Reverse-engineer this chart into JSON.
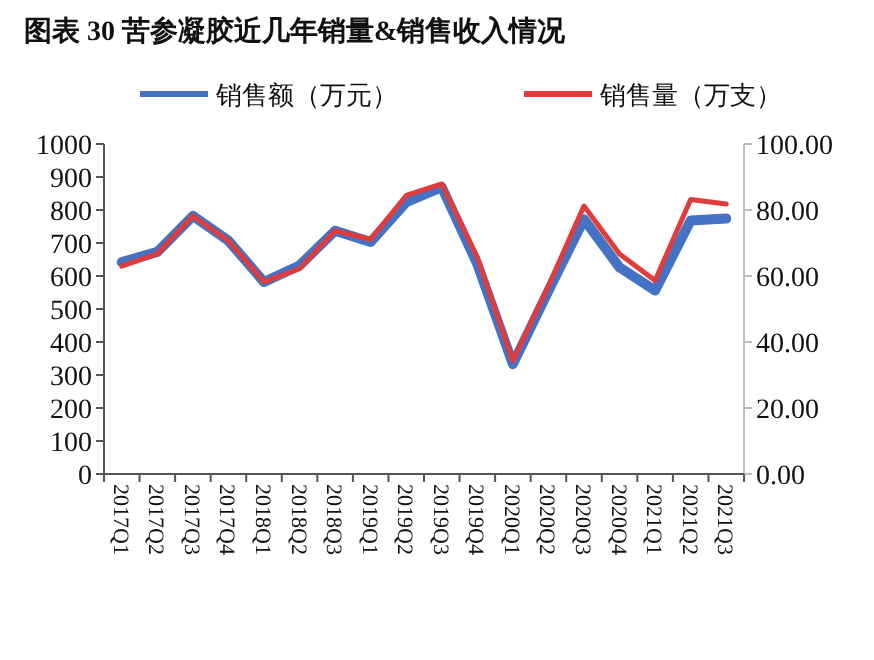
{
  "chart_data": {
    "type": "line",
    "title": "图表 30  苦参凝胶近几年销量&销售收入情况",
    "categories": [
      "2017Q1",
      "2017Q2",
      "2017Q3",
      "2017Q4",
      "2018Q1",
      "2018Q2",
      "2018Q3",
      "2019Q1",
      "2019Q2",
      "2019Q3",
      "2019Q4",
      "2020Q1",
      "2020Q2",
      "2020Q3",
      "2020Q4",
      "2021Q1",
      "2021Q2",
      "2021Q3"
    ],
    "series": [
      {
        "name": "销售额（万元）",
        "color": "#4472c4",
        "values": [
          642,
          673,
          782,
          707,
          582,
          632,
          737,
          703,
          824,
          869,
          636,
          333,
          555,
          772,
          626,
          556,
          768,
          774
        ]
      },
      {
        "name": "销售量（万支）",
        "color": "#e03c3c",
        "axis": "y2",
        "values": [
          63.0,
          66.7,
          78.2,
          70.7,
          58.2,
          62.2,
          73.7,
          71.1,
          84.4,
          87.9,
          65.7,
          34.3,
          57.0,
          81.2,
          66.7,
          58.6,
          83.2,
          81.8
        ]
      }
    ],
    "ylim": [
      0,
      1000
    ],
    "yticks": [
      0,
      100,
      200,
      300,
      400,
      500,
      600,
      700,
      800,
      900,
      1000
    ],
    "y2lim": [
      0,
      100
    ],
    "y2ticks": [
      {
        "value": 0,
        "label": "0.00"
      },
      {
        "value": 20,
        "label": "20.00"
      },
      {
        "value": 40,
        "label": "40.00"
      },
      {
        "value": 60,
        "label": "60.00"
      },
      {
        "value": 80,
        "label": "80.00"
      },
      {
        "value": 100,
        "label": "100.00"
      }
    ],
    "legend": "top",
    "grid": false,
    "marker": "none",
    "line_style": "solid"
  }
}
